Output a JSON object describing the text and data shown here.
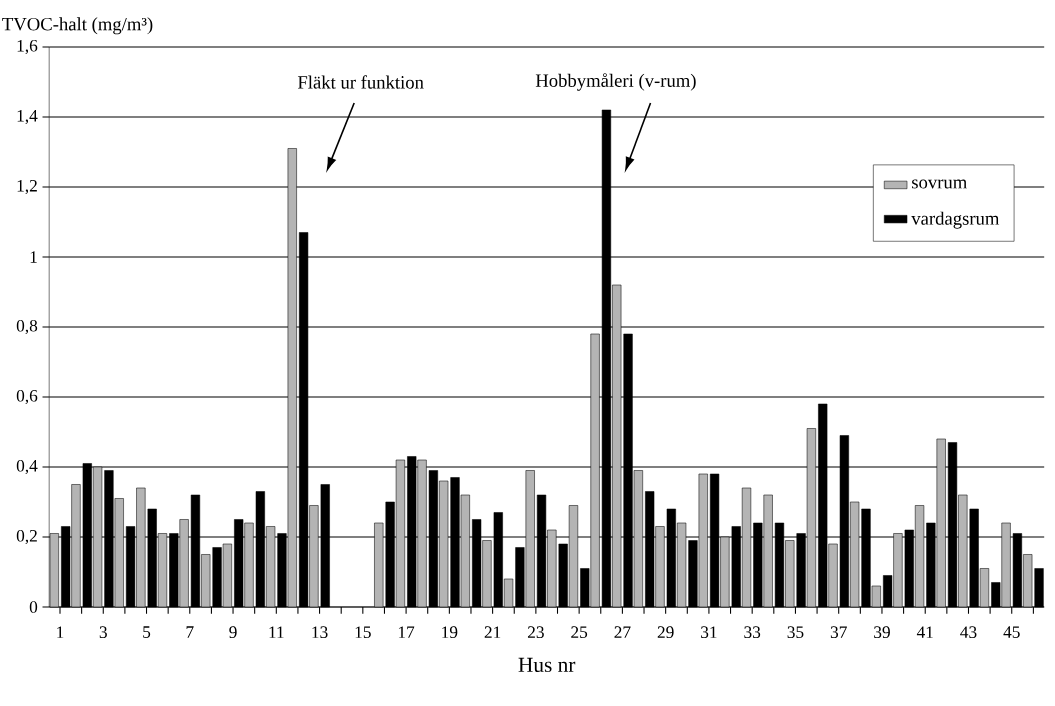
{
  "chart_data": {
    "type": "bar",
    "ylabel": "TVOC-halt (mg/m³)",
    "xlabel": "Hus nr",
    "categories": [
      "1",
      null,
      "3",
      null,
      "5",
      null,
      "7",
      null,
      "9",
      null,
      "11",
      null,
      "13",
      null,
      "15",
      null,
      "17",
      null,
      "19",
      null,
      "21",
      null,
      "23",
      null,
      "25",
      null,
      "27",
      null,
      "29",
      null,
      "31",
      null,
      "33",
      null,
      "35",
      null,
      "37",
      null,
      "39",
      null,
      "41",
      null,
      "43",
      null,
      "45",
      null
    ],
    "series": [
      {
        "name": "sovrum",
        "color": "#b4b4b4",
        "values": [
          0.21,
          0.35,
          0.4,
          0.31,
          0.34,
          0.21,
          0.25,
          0.15,
          0.18,
          0.24,
          0.23,
          1.31,
          0.29,
          null,
          null,
          0.24,
          0.42,
          0.42,
          0.36,
          0.32,
          0.19,
          0.08,
          0.39,
          0.22,
          0.29,
          0.78,
          0.92,
          0.39,
          0.23,
          0.24,
          0.38,
          0.2,
          0.34,
          0.32,
          0.19,
          0.51,
          0.18,
          0.3,
          0.06,
          0.21,
          0.29,
          0.48,
          0.32,
          0.11,
          0.24,
          0.15
        ]
      },
      {
        "name": "vardagsrum",
        "color": "#000000",
        "values": [
          0.23,
          0.41,
          0.39,
          0.23,
          0.28,
          0.21,
          0.32,
          0.17,
          0.25,
          0.33,
          0.21,
          1.07,
          0.35,
          null,
          null,
          0.3,
          0.43,
          0.39,
          0.37,
          0.25,
          0.27,
          0.17,
          0.32,
          0.18,
          0.11,
          1.42,
          0.78,
          0.33,
          0.28,
          0.19,
          0.38,
          0.23,
          0.24,
          0.24,
          0.21,
          0.58,
          0.49,
          0.28,
          0.09,
          0.22,
          0.24,
          0.47,
          0.28,
          0.07,
          0.21,
          0.11
        ]
      }
    ],
    "ylim": [
      0,
      1.6
    ],
    "yticks": [
      0,
      {
        "value": 0.2,
        "label": "0,2"
      },
      {
        "value": 0.4,
        "label": "0,4"
      },
      {
        "value": 0.6,
        "label": "0,6"
      },
      {
        "value": 0.8,
        "label": "0,8"
      },
      1,
      {
        "value": 1.2,
        "label": "1,2"
      },
      {
        "value": 1.4,
        "label": "1,4"
      },
      {
        "value": 1.6,
        "label": "1,6"
      }
    ],
    "grid": "y",
    "legend": "top right",
    "annotations": [
      "Fläkt ur funktion",
      "Hobbymåleri (v-rum)"
    ]
  }
}
